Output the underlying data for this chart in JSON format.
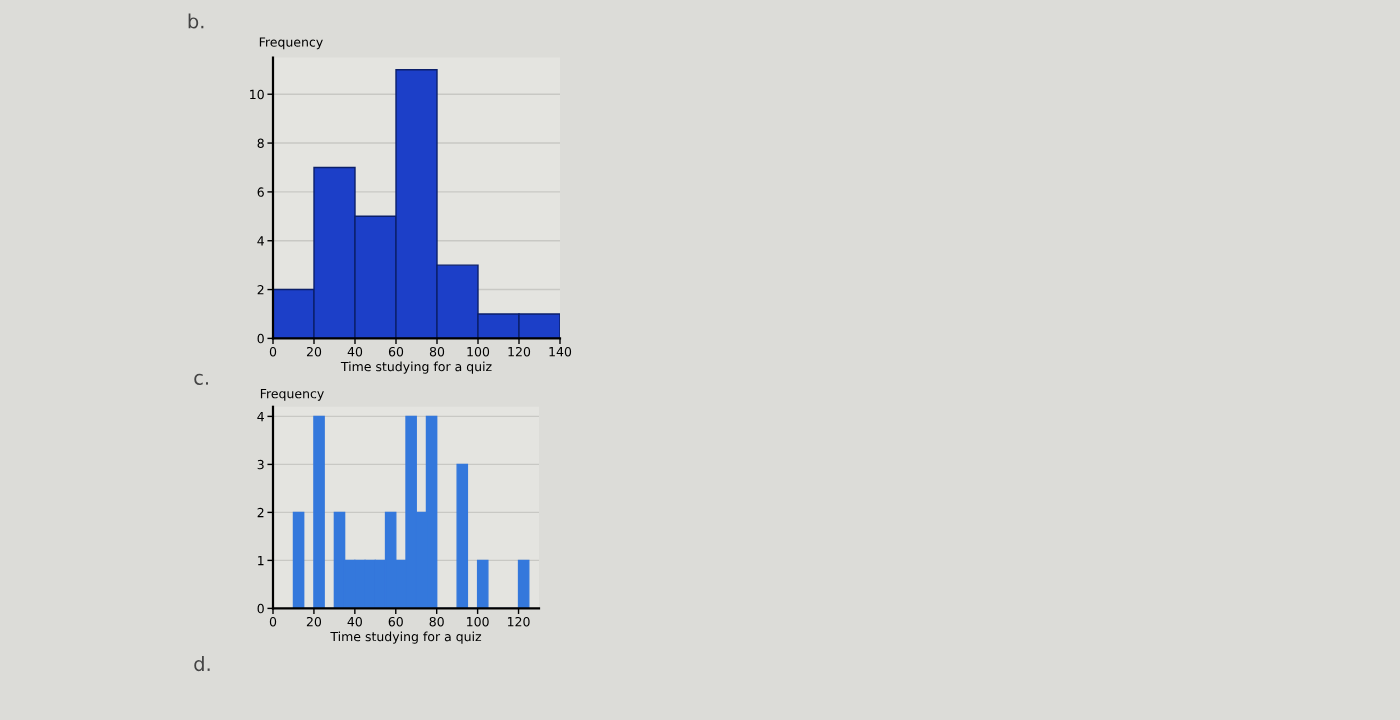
{
  "chart_data": [
    {
      "type": "histogram",
      "ylabel": "Frequency",
      "xlabel": "Time studying for a quiz",
      "annotations": [
        "b."
      ],
      "bins": [
        0,
        20,
        40,
        60,
        80,
        100,
        120,
        140
      ],
      "values": [
        2,
        7,
        5,
        11,
        3,
        1,
        1
      ],
      "color": "#1c3fc8",
      "xlim": [
        0,
        140
      ],
      "xticks": [
        0,
        20,
        40,
        60,
        80,
        100,
        120,
        140
      ],
      "ylim": [
        0,
        11.5
      ],
      "yticks": [
        0,
        2,
        4,
        6,
        8,
        10
      ],
      "grid": "y"
    },
    {
      "type": "histogram",
      "ylabel": "Frequency",
      "xlabel": "Time studying for a quiz",
      "annotations": [
        "c.",
        "d."
      ],
      "bins": [
        10,
        15,
        20,
        25,
        30,
        35,
        40,
        45,
        50,
        55,
        60,
        65,
        70,
        75,
        80,
        85,
        90,
        95,
        100,
        105,
        110,
        115,
        120,
        125
      ],
      "values": [
        2,
        0,
        4,
        0,
        2,
        1,
        1,
        1,
        1,
        2,
        1,
        4,
        2,
        4,
        0,
        0,
        3,
        0,
        1,
        0,
        0,
        0,
        1
      ],
      "color": "#3478dc",
      "xlim": [
        0,
        130
      ],
      "xticks": [
        0,
        20,
        40,
        60,
        80,
        100,
        120
      ],
      "ylim": [
        0,
        4.2
      ],
      "yticks": [
        0,
        1,
        2,
        3,
        4
      ],
      "grid": "y"
    }
  ]
}
